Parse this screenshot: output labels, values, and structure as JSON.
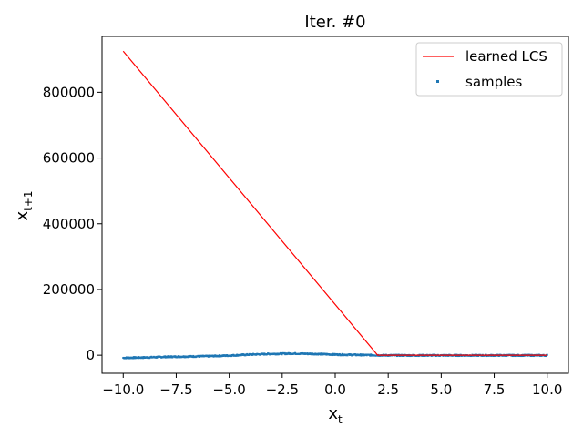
{
  "chart_data": {
    "type": "line",
    "title": "Iter. #0",
    "xlabel": "x",
    "xlabel_sub": "t",
    "ylabel": "x",
    "ylabel_sub": "t+1",
    "xlim": [
      -11.0,
      11.0
    ],
    "ylim": [
      -55000,
      970000
    ],
    "xticks": [
      -10.0,
      -7.5,
      -5.0,
      -2.5,
      0.0,
      2.5,
      5.0,
      7.5,
      10.0
    ],
    "xtick_labels": [
      "−10.0",
      "−7.5",
      "−5.0",
      "−2.5",
      "0.0",
      "2.5",
      "5.0",
      "7.5",
      "10.0"
    ],
    "yticks": [
      0,
      200000,
      400000,
      600000,
      800000
    ],
    "ytick_labels": [
      "0",
      "200000",
      "400000",
      "600000",
      "800000"
    ],
    "grid": false,
    "legend_position": "top-right",
    "series": [
      {
        "name": "learned LCS",
        "kind": "line",
        "color": "#ff0000",
        "x": [
          -10.0,
          2.0,
          10.0
        ],
        "y": [
          925000,
          0,
          0
        ]
      },
      {
        "name": "samples",
        "kind": "scatter",
        "color": "#1f77b4",
        "x": [
          -10.0,
          -9.0,
          -8.0,
          -7.0,
          -6.0,
          -5.0,
          -4.0,
          -3.0,
          -2.0,
          -1.0,
          0.0,
          1.0,
          2.0,
          3.0,
          4.0,
          5.0,
          6.0,
          7.0,
          8.0,
          9.0,
          10.0
        ],
        "y": [
          -8000,
          -7000,
          -5000,
          -4000,
          -3000,
          -1000,
          2000,
          4000,
          5000,
          4000,
          2000,
          1000,
          0,
          -500,
          -500,
          -500,
          -500,
          -500,
          -500,
          -500,
          -500
        ]
      }
    ]
  }
}
